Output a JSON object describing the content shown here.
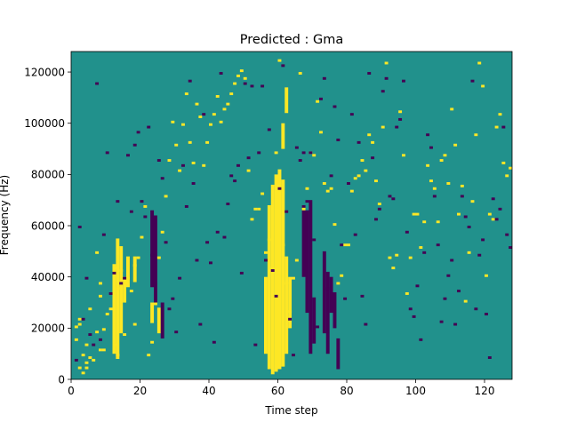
{
  "chart_data": {
    "type": "heatmap",
    "title": "Predicted : Gma",
    "xlabel": "Time step",
    "ylabel": "Frequency (Hz)",
    "xlim": [
      0,
      128
    ],
    "ylim": [
      0,
      128000
    ],
    "x_ticks": [
      0,
      20,
      40,
      60,
      80,
      100,
      120
    ],
    "y_ticks": [
      0,
      20000,
      40000,
      60000,
      80000,
      100000,
      120000
    ],
    "x_tick_labels": [
      "0",
      "20",
      "40",
      "60",
      "80",
      "100",
      "120"
    ],
    "y_tick_labels": [
      "0",
      "20000",
      "40000",
      "60000",
      "80000",
      "100000",
      "120000"
    ],
    "rows": 128,
    "cols": 128,
    "value_levels": [
      0,
      1,
      2
    ],
    "colormap": {
      "0": "#440154",
      "1": "#21918c",
      "2": "#fde725"
    },
    "background_value": 1,
    "grid": false,
    "cells_high": [
      [
        2,
        16
      ],
      [
        3,
        24
      ],
      [
        3,
        22
      ],
      [
        2,
        21
      ],
      [
        3,
        5
      ],
      [
        5,
        7
      ],
      [
        4,
        3
      ],
      [
        4,
        10
      ],
      [
        5,
        5
      ],
      [
        6,
        9
      ],
      [
        5,
        14
      ],
      [
        6,
        28
      ],
      [
        7,
        8
      ],
      [
        8,
        19
      ],
      [
        9,
        12
      ],
      [
        9,
        33
      ],
      [
        9,
        38
      ],
      [
        8,
        50
      ],
      [
        10,
        12
      ],
      [
        10,
        20
      ],
      [
        11,
        26
      ],
      [
        13,
        14
      ],
      [
        12,
        28
      ],
      [
        14,
        36
      ],
      [
        13,
        44
      ],
      [
        15,
        43
      ],
      [
        14,
        10
      ],
      [
        16,
        18
      ],
      [
        17,
        40
      ],
      [
        18,
        35
      ],
      [
        19,
        45
      ],
      [
        20,
        48
      ],
      [
        21,
        56
      ],
      [
        19,
        22
      ],
      [
        22,
        68
      ],
      [
        23,
        10
      ],
      [
        24,
        15
      ],
      [
        25,
        30
      ],
      [
        26,
        48
      ],
      [
        27,
        58
      ],
      [
        28,
        72
      ],
      [
        29,
        86
      ],
      [
        30,
        101
      ],
      [
        31,
        92
      ],
      [
        32,
        82
      ],
      [
        33,
        100
      ],
      [
        34,
        112
      ],
      [
        35,
        93
      ],
      [
        36,
        85
      ],
      [
        37,
        108
      ],
      [
        38,
        103
      ],
      [
        39,
        84
      ],
      [
        40,
        93
      ],
      [
        41,
        100
      ],
      [
        42,
        104
      ],
      [
        43,
        111
      ],
      [
        44,
        101
      ],
      [
        45,
        106
      ],
      [
        46,
        108
      ],
      [
        47,
        112
      ],
      [
        48,
        116
      ],
      [
        49,
        119
      ],
      [
        50,
        121
      ],
      [
        51,
        118
      ],
      [
        52,
        82
      ],
      [
        53,
        63
      ],
      [
        54,
        67
      ],
      [
        55,
        67
      ],
      [
        56,
        73
      ],
      [
        57,
        50
      ],
      [
        58,
        55
      ],
      [
        59,
        44
      ],
      [
        60,
        89
      ],
      [
        61,
        125
      ],
      [
        62,
        53
      ],
      [
        63,
        38
      ],
      [
        64,
        27
      ],
      [
        65,
        40
      ],
      [
        66,
        47
      ],
      [
        67,
        120
      ],
      [
        68,
        67
      ],
      [
        69,
        75
      ],
      [
        70,
        89
      ],
      [
        71,
        88
      ],
      [
        72,
        109
      ],
      [
        73,
        97
      ],
      [
        74,
        77
      ],
      [
        75,
        74
      ],
      [
        76,
        75
      ],
      [
        77,
        61
      ],
      [
        78,
        38
      ],
      [
        79,
        41
      ],
      [
        80,
        53
      ],
      [
        81,
        53
      ],
      [
        82,
        74
      ],
      [
        83,
        79
      ],
      [
        84,
        80
      ],
      [
        85,
        86
      ],
      [
        86,
        82
      ],
      [
        87,
        96
      ],
      [
        88,
        93
      ],
      [
        89,
        78
      ],
      [
        90,
        69
      ],
      [
        91,
        99
      ],
      [
        92,
        124
      ],
      [
        93,
        48
      ],
      [
        94,
        44
      ],
      [
        95,
        49
      ],
      [
        96,
        105
      ],
      [
        97,
        88
      ],
      [
        98,
        34
      ],
      [
        99,
        48
      ],
      [
        100,
        65
      ],
      [
        101,
        65
      ],
      [
        102,
        52
      ],
      [
        103,
        62
      ],
      [
        104,
        84
      ],
      [
        105,
        78
      ],
      [
        106,
        75
      ],
      [
        107,
        62
      ],
      [
        108,
        86
      ],
      [
        109,
        88
      ],
      [
        110,
        77
      ],
      [
        111,
        106
      ],
      [
        112,
        92
      ],
      [
        113,
        65
      ],
      [
        114,
        76
      ],
      [
        115,
        31
      ],
      [
        116,
        50
      ],
      [
        117,
        70
      ],
      [
        118,
        96
      ],
      [
        119,
        124
      ],
      [
        120,
        115
      ],
      [
        121,
        41
      ],
      [
        122,
        65
      ],
      [
        123,
        63
      ],
      [
        124,
        99
      ],
      [
        125,
        104
      ],
      [
        126,
        85
      ],
      [
        127,
        80
      ],
      [
        128,
        83
      ]
    ],
    "cells_low": [
      [
        2,
        8
      ],
      [
        3,
        60
      ],
      [
        4,
        24
      ],
      [
        5,
        40
      ],
      [
        6,
        18
      ],
      [
        7,
        14
      ],
      [
        8,
        116
      ],
      [
        9,
        16
      ],
      [
        10,
        57
      ],
      [
        11,
        89
      ],
      [
        12,
        34
      ],
      [
        13,
        42
      ],
      [
        14,
        70
      ],
      [
        15,
        38
      ],
      [
        16,
        40
      ],
      [
        17,
        88
      ],
      [
        18,
        66
      ],
      [
        19,
        92
      ],
      [
        20,
        97
      ],
      [
        21,
        70
      ],
      [
        22,
        64
      ],
      [
        23,
        99
      ],
      [
        24,
        49
      ],
      [
        25,
        38
      ],
      [
        26,
        86
      ],
      [
        27,
        79
      ],
      [
        28,
        54
      ],
      [
        29,
        28
      ],
      [
        30,
        32
      ],
      [
        31,
        19
      ],
      [
        32,
        40
      ],
      [
        33,
        84
      ],
      [
        34,
        68
      ],
      [
        35,
        117
      ],
      [
        36,
        77
      ],
      [
        37,
        47
      ],
      [
        38,
        22
      ],
      [
        39,
        104
      ],
      [
        40,
        54
      ],
      [
        41,
        46
      ],
      [
        42,
        15
      ],
      [
        43,
        58
      ],
      [
        44,
        120
      ],
      [
        45,
        56
      ],
      [
        46,
        69
      ],
      [
        47,
        80
      ],
      [
        48,
        78
      ],
      [
        49,
        84
      ],
      [
        50,
        42
      ],
      [
        51,
        116
      ],
      [
        52,
        87
      ],
      [
        53,
        115
      ],
      [
        54,
        14
      ],
      [
        55,
        89
      ],
      [
        56,
        115
      ],
      [
        57,
        47
      ],
      [
        58,
        98
      ],
      [
        59,
        43
      ],
      [
        60,
        33
      ],
      [
        61,
        75
      ],
      [
        62,
        123
      ],
      [
        63,
        66
      ],
      [
        64,
        24
      ],
      [
        65,
        10
      ],
      [
        66,
        91
      ],
      [
        67,
        86
      ],
      [
        68,
        89
      ],
      [
        69,
        70
      ],
      [
        70,
        89
      ],
      [
        71,
        55
      ],
      [
        72,
        21
      ],
      [
        73,
        110
      ],
      [
        74,
        118
      ],
      [
        75,
        36
      ],
      [
        76,
        80
      ],
      [
        77,
        107
      ],
      [
        78,
        94
      ],
      [
        79,
        53
      ],
      [
        80,
        32
      ],
      [
        81,
        77
      ],
      [
        82,
        104
      ],
      [
        83,
        57
      ],
      [
        84,
        93
      ],
      [
        85,
        33
      ],
      [
        86,
        22
      ],
      [
        87,
        120
      ],
      [
        88,
        87
      ],
      [
        89,
        63
      ],
      [
        90,
        67
      ],
      [
        91,
        113
      ],
      [
        92,
        118
      ],
      [
        93,
        72
      ],
      [
        94,
        71
      ],
      [
        95,
        99
      ],
      [
        96,
        102
      ],
      [
        97,
        117
      ],
      [
        98,
        58
      ],
      [
        99,
        28
      ],
      [
        100,
        25
      ],
      [
        101,
        37
      ],
      [
        102,
        16
      ],
      [
        103,
        50
      ],
      [
        104,
        96
      ],
      [
        105,
        91
      ],
      [
        106,
        72
      ],
      [
        107,
        53
      ],
      [
        108,
        23
      ],
      [
        109,
        32
      ],
      [
        110,
        41
      ],
      [
        111,
        47
      ],
      [
        112,
        22
      ],
      [
        113,
        35
      ],
      [
        114,
        72
      ],
      [
        115,
        64
      ],
      [
        116,
        60
      ],
      [
        117,
        117
      ],
      [
        118,
        28
      ],
      [
        119,
        49
      ],
      [
        120,
        55
      ],
      [
        121,
        26
      ],
      [
        122,
        9
      ],
      [
        123,
        71
      ],
      [
        124,
        63
      ],
      [
        125,
        67
      ],
      [
        126,
        99
      ],
      [
        127,
        57
      ],
      [
        128,
        52
      ]
    ],
    "bands_high": [
      {
        "col": 13,
        "from": 10,
        "to": 45
      },
      {
        "col": 14,
        "from": 8,
        "to": 55
      },
      {
        "col": 15,
        "from": 18,
        "to": 52
      },
      {
        "col": 16,
        "from": 30,
        "to": 40
      },
      {
        "col": 17,
        "from": 36,
        "to": 48
      },
      {
        "col": 19,
        "from": 38,
        "to": 48
      },
      {
        "col": 24,
        "from": 22,
        "to": 30
      },
      {
        "col": 26,
        "from": 18,
        "to": 28
      },
      {
        "col": 57,
        "from": 10,
        "to": 40
      },
      {
        "col": 58,
        "from": 4,
        "to": 68
      },
      {
        "col": 59,
        "from": 2,
        "to": 76
      },
      {
        "col": 60,
        "from": 3,
        "to": 80
      },
      {
        "col": 61,
        "from": 4,
        "to": 82
      },
      {
        "col": 62,
        "from": 5,
        "to": 78
      },
      {
        "col": 63,
        "from": 10,
        "to": 48
      },
      {
        "col": 64,
        "from": 20,
        "to": 40
      },
      {
        "col": 62,
        "from": 90,
        "to": 100
      },
      {
        "col": 63,
        "from": 104,
        "to": 114
      }
    ],
    "bands_low": [
      {
        "col": 24,
        "from": 36,
        "to": 66
      },
      {
        "col": 25,
        "from": 30,
        "to": 64
      },
      {
        "col": 27,
        "from": 16,
        "to": 30
      },
      {
        "col": 68,
        "from": 40,
        "to": 68
      },
      {
        "col": 69,
        "from": 26,
        "to": 66
      },
      {
        "col": 70,
        "from": 10,
        "to": 70
      },
      {
        "col": 71,
        "from": 14,
        "to": 32
      },
      {
        "col": 74,
        "from": 18,
        "to": 50
      },
      {
        "col": 75,
        "from": 10,
        "to": 42
      },
      {
        "col": 76,
        "from": 26,
        "to": 40
      },
      {
        "col": 77,
        "from": 20,
        "to": 34
      },
      {
        "col": 78,
        "from": 4,
        "to": 16
      }
    ]
  }
}
